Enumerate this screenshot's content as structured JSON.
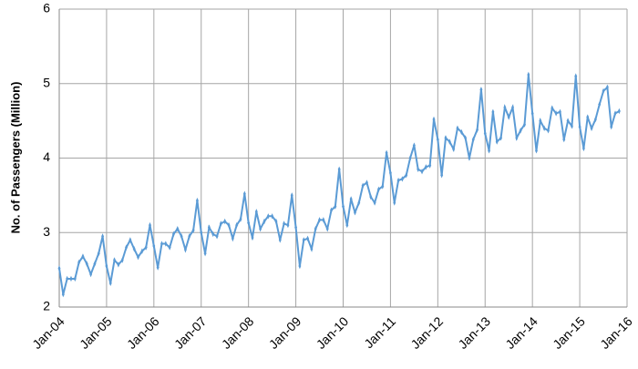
{
  "chart_data": {
    "type": "line",
    "ylabel": "No. of Passengers (Million)",
    "categories": [
      "Jan-04",
      null,
      null,
      null,
      null,
      null,
      null,
      null,
      null,
      null,
      null,
      null,
      "Jan-05",
      null,
      null,
      null,
      null,
      null,
      null,
      null,
      null,
      null,
      null,
      null,
      "Jan-06",
      null,
      null,
      null,
      null,
      null,
      null,
      null,
      null,
      null,
      null,
      null,
      "Jan-07",
      null,
      null,
      null,
      null,
      null,
      null,
      null,
      null,
      null,
      null,
      null,
      "Jan-08",
      null,
      null,
      null,
      null,
      null,
      null,
      null,
      null,
      null,
      null,
      null,
      "Jan-09",
      null,
      null,
      null,
      null,
      null,
      null,
      null,
      null,
      null,
      null,
      null,
      "Jan-10",
      null,
      null,
      null,
      null,
      null,
      null,
      null,
      null,
      null,
      null,
      null,
      "Jan-11",
      null,
      null,
      null,
      null,
      null,
      null,
      null,
      null,
      null,
      null,
      null,
      "Jan-12",
      null,
      null,
      null,
      null,
      null,
      null,
      null,
      null,
      null,
      null,
      null,
      "Jan-13",
      null,
      null,
      null,
      null,
      null,
      null,
      null,
      null,
      null,
      null,
      null,
      "Jan-14",
      null,
      null,
      null,
      null,
      null,
      null,
      null,
      null,
      null,
      null,
      null,
      "Jan-15",
      null,
      null,
      null,
      null,
      null,
      null,
      null,
      null,
      null,
      null,
      null,
      "Jan-16"
    ],
    "series": [
      {
        "color": "#5b9bd5",
        "values": [
          2.52,
          2.17,
          2.38,
          2.38,
          2.38,
          2.6,
          2.68,
          2.58,
          2.44,
          2.58,
          2.72,
          2.95,
          2.55,
          2.32,
          2.63,
          2.57,
          2.63,
          2.8,
          2.9,
          2.78,
          2.67,
          2.75,
          2.8,
          3.1,
          2.82,
          2.53,
          2.85,
          2.85,
          2.8,
          2.98,
          3.05,
          2.95,
          2.77,
          2.95,
          3.03,
          3.43,
          3.0,
          2.72,
          3.07,
          2.98,
          2.95,
          3.12,
          3.15,
          3.1,
          2.92,
          3.1,
          3.18,
          3.52,
          3.13,
          2.93,
          3.28,
          3.05,
          3.15,
          3.22,
          3.22,
          3.15,
          2.9,
          3.12,
          3.1,
          3.5,
          3.07,
          2.55,
          2.9,
          2.92,
          2.78,
          3.05,
          3.17,
          3.17,
          3.05,
          3.3,
          3.35,
          3.85,
          3.35,
          3.1,
          3.45,
          3.27,
          3.4,
          3.63,
          3.67,
          3.48,
          3.4,
          3.58,
          3.62,
          4.07,
          3.8,
          3.4,
          3.7,
          3.72,
          3.77,
          4.0,
          4.17,
          3.85,
          3.82,
          3.88,
          3.9,
          4.52,
          4.25,
          3.77,
          4.27,
          4.22,
          4.12,
          4.4,
          4.35,
          4.27,
          4.0,
          4.25,
          4.38,
          4.92,
          4.33,
          4.1,
          4.62,
          4.22,
          4.27,
          4.68,
          4.55,
          4.68,
          4.27,
          4.37,
          4.45,
          5.12,
          4.6,
          4.1,
          4.5,
          4.4,
          4.37,
          4.67,
          4.6,
          4.62,
          4.25,
          4.5,
          4.43,
          5.1,
          4.42,
          4.13,
          4.55,
          4.4,
          4.52,
          4.72,
          4.9,
          4.95,
          4.42,
          4.6,
          4.63,
          null,
          null
        ]
      }
    ],
    "ylim": [
      2,
      6
    ],
    "yticks": [
      2,
      3,
      4,
      5,
      6
    ],
    "grid": true
  }
}
